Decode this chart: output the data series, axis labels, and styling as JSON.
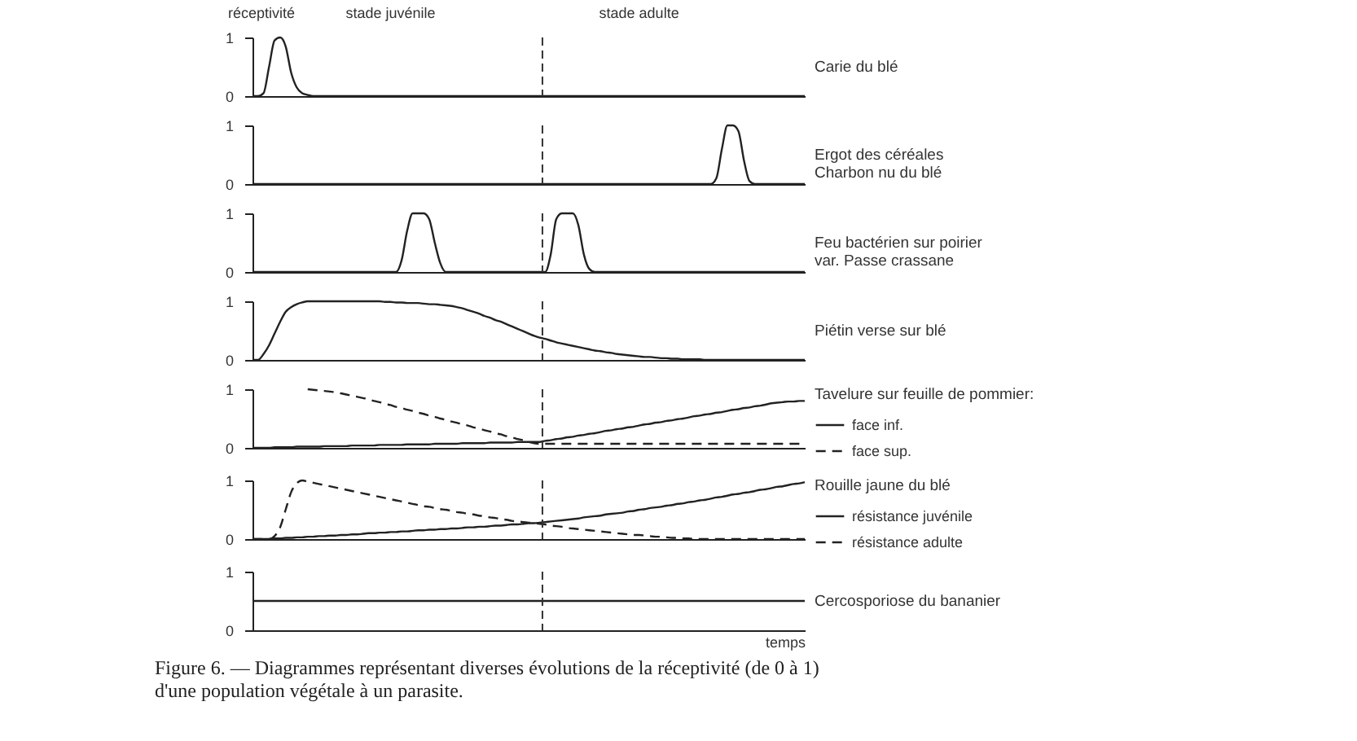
{
  "chart_data": [
    {
      "type": "line",
      "annotations": [
        "réceptivité",
        "stade juvénile",
        "stade adulte"
      ],
      "categories": [
        null,
        null,
        null,
        null,
        null,
        null,
        null,
        null,
        null,
        null,
        null,
        null,
        null,
        null,
        null,
        null,
        null,
        null,
        null,
        null,
        null,
        null,
        null,
        null,
        null,
        null,
        null,
        null,
        null,
        null,
        null,
        null,
        null,
        null,
        null,
        null,
        null,
        null,
        null,
        null,
        null,
        null,
        null,
        null,
        null,
        null,
        null,
        null,
        null,
        null,
        null,
        null,
        null,
        null,
        null,
        null,
        null,
        null,
        null,
        null,
        null,
        null,
        null,
        null,
        null,
        null,
        null,
        null,
        null,
        null,
        null,
        null,
        null,
        null,
        null,
        null,
        null,
        null,
        null,
        null,
        null,
        null,
        null,
        null,
        null,
        null,
        null,
        null,
        null,
        null,
        null,
        null,
        null,
        null,
        null,
        null,
        null,
        null,
        null,
        null,
        null
      ],
      "ylim": [
        0,
        1
      ],
      "yticks": [
        0,
        1
      ],
      "tick_labels": "y",
      "series": [
        {
          "name": "Carie du blé",
          "color": "#222222",
          "line_style": "solid",
          "values": [
            0,
            0,
            0.05,
            0.5,
            0.95,
            1,
            0.85,
            0.4,
            0.15,
            0.05,
            0.02,
            0,
            0,
            0,
            0,
            0,
            0,
            0,
            0,
            0,
            0,
            0,
            0,
            0,
            0,
            0,
            0,
            0,
            0,
            0,
            0,
            0,
            0,
            0,
            0,
            0,
            0,
            0,
            0,
            0,
            0,
            0,
            0,
            0,
            0,
            0,
            0,
            0,
            0,
            0,
            0,
            0,
            0,
            0,
            0,
            0,
            0,
            0,
            0,
            0,
            0,
            0,
            0,
            0,
            0,
            0,
            0,
            0,
            0,
            0,
            0,
            0,
            0,
            0,
            0,
            0,
            0,
            0,
            0,
            0,
            0,
            0,
            0,
            0,
            0,
            0,
            0,
            0,
            0,
            0,
            0,
            0,
            0,
            0,
            0,
            0,
            0,
            0,
            0,
            0,
            0
          ]
        }
      ]
    },
    {
      "type": "line",
      "categories": [
        null,
        null,
        null,
        null,
        null,
        null,
        null,
        null,
        null,
        null,
        null,
        null,
        null,
        null,
        null,
        null,
        null,
        null,
        null,
        null,
        null,
        null,
        null,
        null,
        null,
        null,
        null,
        null,
        null,
        null,
        null,
        null,
        null,
        null,
        null,
        null,
        null,
        null,
        null,
        null,
        null,
        null,
        null,
        null,
        null,
        null,
        null,
        null,
        null,
        null,
        null,
        null,
        null,
        null,
        null,
        null,
        null,
        null,
        null,
        null,
        null,
        null,
        null,
        null,
        null,
        null,
        null,
        null,
        null,
        null,
        null,
        null,
        null,
        null,
        null,
        null,
        null,
        null,
        null,
        null,
        null,
        null,
        null,
        null,
        null,
        null,
        null,
        null,
        null,
        null,
        null,
        null,
        null,
        null,
        null,
        null,
        null,
        null,
        null,
        null,
        null
      ],
      "ylim": [
        0,
        1
      ],
      "yticks": [
        0,
        1
      ],
      "tick_labels": "y",
      "series": [
        {
          "name": "Ergot des céréales\nCharbon nu du blé",
          "color": "#222222",
          "line_style": "solid",
          "values": [
            0,
            0,
            0,
            0,
            0,
            0,
            0,
            0,
            0,
            0,
            0,
            0,
            0,
            0,
            0,
            0,
            0,
            0,
            0,
            0,
            0,
            0,
            0,
            0,
            0,
            0,
            0,
            0,
            0,
            0,
            0,
            0,
            0,
            0,
            0,
            0,
            0,
            0,
            0,
            0,
            0,
            0,
            0,
            0,
            0,
            0,
            0,
            0,
            0,
            0,
            0,
            0,
            0,
            0,
            0,
            0,
            0,
            0,
            0,
            0,
            0,
            0,
            0,
            0,
            0,
            0,
            0,
            0,
            0,
            0,
            0,
            0,
            0,
            0,
            0,
            0,
            0,
            0,
            0,
            0,
            0,
            0,
            0,
            0,
            0.1,
            0.6,
            1,
            1,
            0.9,
            0.4,
            0.05,
            0,
            0,
            0,
            0,
            0,
            0,
            0,
            0,
            0,
            0
          ]
        }
      ]
    },
    {
      "type": "line",
      "categories": [
        null,
        null,
        null,
        null,
        null,
        null,
        null,
        null,
        null,
        null,
        null,
        null,
        null,
        null,
        null,
        null,
        null,
        null,
        null,
        null,
        null,
        null,
        null,
        null,
        null,
        null,
        null,
        null,
        null,
        null,
        null,
        null,
        null,
        null,
        null,
        null,
        null,
        null,
        null,
        null,
        null,
        null,
        null,
        null,
        null,
        null,
        null,
        null,
        null,
        null,
        null,
        null,
        null,
        null,
        null,
        null,
        null,
        null,
        null,
        null,
        null,
        null,
        null,
        null,
        null,
        null,
        null,
        null,
        null,
        null,
        null,
        null,
        null,
        null,
        null,
        null,
        null,
        null,
        null,
        null,
        null,
        null,
        null,
        null,
        null,
        null,
        null,
        null,
        null,
        null,
        null,
        null,
        null,
        null,
        null,
        null,
        null,
        null,
        null,
        null,
        null
      ],
      "ylim": [
        0,
        1
      ],
      "yticks": [
        0,
        1
      ],
      "tick_labels": "y",
      "series": [
        {
          "name": "Feu bactérien sur poirier\nvar. Passe crassane",
          "color": "#222222",
          "line_style": "solid",
          "values": [
            0,
            0,
            0,
            0,
            0,
            0,
            0,
            0,
            0,
            0,
            0,
            0,
            0,
            0,
            0,
            0,
            0,
            0,
            0,
            0,
            0,
            0,
            0,
            0,
            0,
            0,
            0,
            0.2,
            0.7,
            1,
            1,
            1,
            0.9,
            0.5,
            0.15,
            0,
            0,
            0,
            0,
            0,
            0,
            0,
            0,
            0,
            0,
            0,
            0,
            0,
            0,
            0,
            0,
            0,
            0,
            0,
            0.3,
            0.9,
            1,
            1,
            1,
            0.8,
            0.3,
            0.05,
            0,
            0,
            0,
            0,
            0,
            0,
            0,
            0,
            0,
            0,
            0,
            0,
            0,
            0,
            0,
            0,
            0,
            0,
            0,
            0,
            0,
            0,
            0,
            0,
            0,
            0,
            0,
            0,
            0,
            0,
            0,
            0,
            0,
            0,
            0,
            0,
            0,
            0,
            0
          ]
        }
      ]
    },
    {
      "type": "line",
      "categories": [
        null,
        null,
        null,
        null,
        null,
        null,
        null,
        null,
        null,
        null,
        null,
        null,
        null,
        null,
        null,
        null,
        null,
        null,
        null,
        null,
        null,
        null,
        null,
        null,
        null,
        null,
        null,
        null,
        null,
        null,
        null,
        null,
        null,
        null,
        null,
        null,
        null,
        null,
        null,
        null,
        null,
        null,
        null,
        null,
        null,
        null,
        null,
        null,
        null,
        null,
        null,
        null,
        null,
        null,
        null,
        null,
        null,
        null,
        null,
        null,
        null,
        null,
        null,
        null,
        null,
        null,
        null,
        null,
        null,
        null,
        null,
        null,
        null,
        null,
        null,
        null,
        null,
        null,
        null,
        null,
        null,
        null,
        null,
        null,
        null,
        null,
        null,
        null,
        null,
        null,
        null,
        null,
        null,
        null,
        null,
        null,
        null,
        null,
        null,
        null,
        null
      ],
      "ylim": [
        0,
        1
      ],
      "yticks": [
        0,
        1
      ],
      "tick_labels": "y",
      "series": [
        {
          "name": "Piétin verse sur blé",
          "color": "#222222",
          "line_style": "solid",
          "values": [
            0,
            0,
            0.1,
            0.25,
            0.45,
            0.65,
            0.82,
            0.9,
            0.95,
            0.98,
            1,
            1,
            1,
            1,
            1,
            1,
            1,
            1,
            1,
            1,
            1,
            1,
            1,
            1,
            0.99,
            0.99,
            0.98,
            0.98,
            0.97,
            0.97,
            0.97,
            0.96,
            0.95,
            0.95,
            0.94,
            0.93,
            0.92,
            0.9,
            0.88,
            0.85,
            0.82,
            0.79,
            0.75,
            0.72,
            0.68,
            0.65,
            0.61,
            0.57,
            0.53,
            0.49,
            0.45,
            0.41,
            0.38,
            0.36,
            0.33,
            0.3,
            0.28,
            0.26,
            0.24,
            0.22,
            0.2,
            0.18,
            0.16,
            0.15,
            0.13,
            0.12,
            0.1,
            0.09,
            0.08,
            0.07,
            0.06,
            0.05,
            0.05,
            0.04,
            0.03,
            0.03,
            0.02,
            0.02,
            0.01,
            0.01,
            0.01,
            0.01,
            0,
            0,
            0,
            0,
            0,
            0,
            0,
            0,
            0,
            0,
            0,
            0,
            0,
            0,
            0,
            0,
            0,
            0,
            0
          ]
        }
      ]
    },
    {
      "type": "line",
      "legend_title": "Tavelure sur feuille de pommier:",
      "legend": "right",
      "categories": [
        null,
        null,
        null,
        null,
        null,
        null,
        null,
        null,
        null,
        null,
        null,
        null,
        null,
        null,
        null,
        null,
        null,
        null,
        null,
        null,
        null,
        null,
        null,
        null,
        null,
        null,
        null,
        null,
        null,
        null,
        null,
        null,
        null,
        null,
        null,
        null,
        null,
        null,
        null,
        null,
        null,
        null,
        null,
        null,
        null,
        null,
        null,
        null,
        null,
        null,
        null,
        null,
        null,
        null,
        null,
        null,
        null,
        null,
        null,
        null,
        null,
        null,
        null,
        null,
        null,
        null,
        null,
        null,
        null,
        null,
        null,
        null,
        null,
        null,
        null,
        null,
        null,
        null,
        null,
        null,
        null,
        null,
        null,
        null,
        null,
        null,
        null,
        null,
        null,
        null,
        null,
        null,
        null,
        null,
        null,
        null,
        null,
        null,
        null,
        null,
        null
      ],
      "ylim": [
        0,
        1
      ],
      "yticks": [
        0,
        1
      ],
      "tick_labels": "y",
      "series": [
        {
          "name": "face inf.",
          "color": "#222222",
          "line_style": "solid",
          "values": [
            0,
            0,
            0,
            0,
            0.01,
            0.01,
            0.01,
            0.01,
            0.02,
            0.02,
            0.02,
            0.02,
            0.02,
            0.03,
            0.03,
            0.03,
            0.03,
            0.03,
            0.04,
            0.04,
            0.04,
            0.04,
            0.04,
            0.05,
            0.05,
            0.05,
            0.05,
            0.05,
            0.06,
            0.06,
            0.06,
            0.06,
            0.06,
            0.07,
            0.07,
            0.07,
            0.07,
            0.07,
            0.08,
            0.08,
            0.08,
            0.08,
            0.08,
            0.09,
            0.09,
            0.09,
            0.09,
            0.09,
            0.1,
            0.1,
            0.1,
            0.1,
            0.1,
            0.12,
            0.13,
            0.15,
            0.16,
            0.18,
            0.19,
            0.21,
            0.22,
            0.24,
            0.25,
            0.27,
            0.29,
            0.3,
            0.32,
            0.33,
            0.35,
            0.36,
            0.38,
            0.4,
            0.41,
            0.43,
            0.44,
            0.46,
            0.47,
            0.49,
            0.5,
            0.52,
            0.54,
            0.55,
            0.57,
            0.58,
            0.6,
            0.61,
            0.63,
            0.65,
            0.66,
            0.68,
            0.69,
            0.71,
            0.72,
            0.74,
            0.76,
            0.77,
            0.78,
            0.79,
            0.79,
            0.8,
            0.8
          ]
        },
        {
          "name": "face sup.",
          "color": "#222222",
          "line_style": "dashed",
          "values": [
            null,
            null,
            null,
            null,
            null,
            null,
            null,
            null,
            null,
            null,
            1,
            0.99,
            0.98,
            0.97,
            0.96,
            0.95,
            0.93,
            0.91,
            0.89,
            0.87,
            0.85,
            0.83,
            0.8,
            0.78,
            0.75,
            0.73,
            0.7,
            0.68,
            0.65,
            0.63,
            0.6,
            0.58,
            0.55,
            0.53,
            0.5,
            0.48,
            0.45,
            0.43,
            0.4,
            0.38,
            0.35,
            0.33,
            0.3,
            0.28,
            0.25,
            0.23,
            0.2,
            0.18,
            0.15,
            0.13,
            0.1,
            0.08,
            0.07,
            0.07,
            0.07,
            0.07,
            0.07,
            0.07,
            0.07,
            0.07,
            0.07,
            0.07,
            0.07,
            0.07,
            0.07,
            0.07,
            0.07,
            0.07,
            0.07,
            0.07,
            0.07,
            0.07,
            0.07,
            0.07,
            0.07,
            0.07,
            0.07,
            0.07,
            0.07,
            0.07,
            0.07,
            0.07,
            0.07,
            0.07,
            0.07,
            0.07,
            0.07,
            0.07,
            0.07,
            0.07,
            0.07,
            0.07,
            0.07,
            0.07,
            0.07,
            0.07,
            0.07,
            0.07,
            0.07,
            0.07,
            0.07
          ]
        }
      ]
    },
    {
      "type": "line",
      "legend_title": "Rouille jaune du blé",
      "legend": "right",
      "categories": [
        null,
        null,
        null,
        null,
        null,
        null,
        null,
        null,
        null,
        null,
        null,
        null,
        null,
        null,
        null,
        null,
        null,
        null,
        null,
        null,
        null,
        null,
        null,
        null,
        null,
        null,
        null,
        null,
        null,
        null,
        null,
        null,
        null,
        null,
        null,
        null,
        null,
        null,
        null,
        null,
        null,
        null,
        null,
        null,
        null,
        null,
        null,
        null,
        null,
        null,
        null,
        null,
        null,
        null,
        null,
        null,
        null,
        null,
        null,
        null,
        null,
        null,
        null,
        null,
        null,
        null,
        null,
        null,
        null,
        null,
        null,
        null,
        null,
        null,
        null,
        null,
        null,
        null,
        null,
        null,
        null,
        null,
        null,
        null,
        null,
        null,
        null,
        null,
        null,
        null,
        null,
        null,
        null,
        null,
        null,
        null,
        null,
        null,
        null,
        null,
        null
      ],
      "ylim": [
        0,
        1
      ],
      "yticks": [
        0,
        1
      ],
      "tick_labels": "y",
      "series": [
        {
          "name": "résistance juvénile",
          "color": "#222222",
          "line_style": "solid",
          "values": [
            0,
            0,
            0,
            0,
            0.01,
            0.01,
            0.02,
            0.02,
            0.03,
            0.03,
            0.04,
            0.04,
            0.05,
            0.05,
            0.06,
            0.06,
            0.07,
            0.07,
            0.08,
            0.08,
            0.09,
            0.1,
            0.1,
            0.11,
            0.11,
            0.12,
            0.12,
            0.13,
            0.13,
            0.14,
            0.15,
            0.15,
            0.16,
            0.16,
            0.17,
            0.17,
            0.18,
            0.18,
            0.19,
            0.2,
            0.2,
            0.21,
            0.21,
            0.22,
            0.23,
            0.23,
            0.24,
            0.25,
            0.25,
            0.26,
            0.27,
            0.27,
            0.28,
            0.29,
            0.3,
            0.31,
            0.32,
            0.33,
            0.34,
            0.35,
            0.37,
            0.38,
            0.39,
            0.4,
            0.42,
            0.43,
            0.44,
            0.45,
            0.47,
            0.48,
            0.5,
            0.51,
            0.53,
            0.54,
            0.55,
            0.57,
            0.58,
            0.6,
            0.61,
            0.63,
            0.64,
            0.66,
            0.67,
            0.69,
            0.71,
            0.72,
            0.74,
            0.76,
            0.77,
            0.79,
            0.8,
            0.82,
            0.84,
            0.85,
            0.87,
            0.89,
            0.9,
            0.92,
            0.94,
            0.95,
            0.97
          ]
        },
        {
          "name": "résistance adulte",
          "color": "#222222",
          "line_style": "dashed",
          "values": [
            0,
            0,
            0,
            0,
            0.05,
            0.2,
            0.5,
            0.8,
            0.95,
            1,
            0.98,
            0.96,
            0.94,
            0.92,
            0.9,
            0.88,
            0.86,
            0.84,
            0.82,
            0.8,
            0.78,
            0.76,
            0.74,
            0.72,
            0.7,
            0.68,
            0.66,
            0.64,
            0.62,
            0.6,
            0.58,
            0.56,
            0.55,
            0.53,
            0.51,
            0.5,
            0.48,
            0.46,
            0.45,
            0.43,
            0.42,
            0.4,
            0.39,
            0.37,
            0.36,
            0.34,
            0.33,
            0.31,
            0.3,
            0.29,
            0.28,
            0.27,
            0.26,
            0.25,
            0.23,
            0.22,
            0.21,
            0.19,
            0.18,
            0.17,
            0.16,
            0.15,
            0.14,
            0.13,
            0.12,
            0.11,
            0.1,
            0.09,
            0.08,
            0.07,
            0.07,
            0.06,
            0.05,
            0.04,
            0.04,
            0.03,
            0.02,
            0.02,
            0.01,
            0.01,
            0,
            0,
            0,
            0,
            0,
            0,
            0,
            0,
            0,
            0,
            0,
            0,
            0,
            0,
            0,
            0,
            0,
            0,
            0,
            0,
            0
          ]
        }
      ]
    },
    {
      "type": "line",
      "xlabel": "temps",
      "annotations": [
        "Figure 6. — Diagrammes représentant diverses évolutions de la réceptivité (de 0 à 1)",
        "d'une population végétale à un parasite."
      ],
      "categories": [
        null,
        null,
        null,
        null,
        null,
        null,
        null,
        null,
        null,
        null,
        null,
        null,
        null,
        null,
        null,
        null,
        null,
        null,
        null,
        null,
        null,
        null,
        null,
        null,
        null,
        null,
        null,
        null,
        null,
        null,
        null,
        null,
        null,
        null,
        null,
        null,
        null,
        null,
        null,
        null,
        null,
        null,
        null,
        null,
        null,
        null,
        null,
        null,
        null,
        null,
        null,
        null,
        null,
        null,
        null,
        null,
        null,
        null,
        null,
        null,
        null,
        null,
        null,
        null,
        null,
        null,
        null,
        null,
        null,
        null,
        null,
        null,
        null,
        null,
        null,
        null,
        null,
        null,
        null,
        null,
        null,
        null,
        null,
        null,
        null,
        null,
        null,
        null,
        null,
        null,
        null,
        null,
        null,
        null,
        null,
        null,
        null,
        null,
        null,
        null,
        null
      ],
      "ylim": [
        0,
        1
      ],
      "yticks": [
        0,
        1
      ],
      "tick_labels": "y",
      "series": [
        {
          "name": "Cercosporiose du bananier",
          "color": "#222222",
          "line_style": "solid",
          "values": [
            0.5,
            0.5,
            0.5,
            0.5,
            0.5,
            0.5,
            0.5,
            0.5,
            0.5,
            0.5,
            0.5,
            0.5,
            0.5,
            0.5,
            0.5,
            0.5,
            0.5,
            0.5,
            0.5,
            0.5,
            0.5,
            0.5,
            0.5,
            0.5,
            0.5,
            0.5,
            0.5,
            0.5,
            0.5,
            0.5,
            0.5,
            0.5,
            0.5,
            0.5,
            0.5,
            0.5,
            0.5,
            0.5,
            0.5,
            0.5,
            0.5,
            0.5,
            0.5,
            0.5,
            0.5,
            0.5,
            0.5,
            0.5,
            0.5,
            0.5,
            0.5,
            0.5,
            0.5,
            0.5,
            0.5,
            0.5,
            0.5,
            0.5,
            0.5,
            0.5,
            0.5,
            0.5,
            0.5,
            0.5,
            0.5,
            0.5,
            0.5,
            0.5,
            0.5,
            0.5,
            0.5,
            0.5,
            0.5,
            0.5,
            0.5,
            0.5,
            0.5,
            0.5,
            0.5,
            0.5,
            0.5,
            0.5,
            0.5,
            0.5,
            0.5,
            0.5,
            0.5,
            0.5,
            0.5,
            0.5,
            0.5,
            0.5,
            0.5,
            0.5,
            0.5,
            0.5,
            0.5,
            0.5,
            0.5,
            0.5,
            0.5
          ]
        }
      ]
    }
  ]
}
